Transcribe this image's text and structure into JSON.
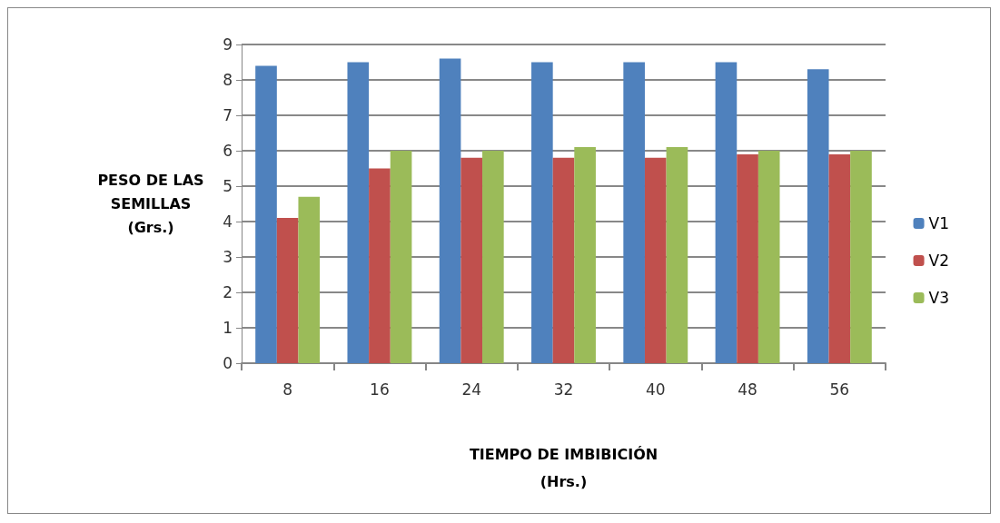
{
  "chart_data": {
    "type": "bar",
    "xlabel": "TIEMPO DE IMBIBICIÓN\n(Hrs.)",
    "ylabel": "PESO DE LAS\nSEMILLAS\n(Grs.)",
    "categories": [
      "8",
      "16",
      "24",
      "32",
      "40",
      "48",
      "56"
    ],
    "series": [
      {
        "name": "V1",
        "color": "#4f81bd",
        "values": [
          8.4,
          8.5,
          8.6,
          8.5,
          8.5,
          8.5,
          8.3
        ]
      },
      {
        "name": "V2",
        "color": "#c0504d",
        "values": [
          4.1,
          5.5,
          5.8,
          5.8,
          5.8,
          5.9,
          5.9
        ]
      },
      {
        "name": "V3",
        "color": "#9bbb59",
        "values": [
          4.7,
          6.0,
          6.0,
          6.1,
          6.1,
          6.0,
          6.0
        ]
      }
    ],
    "ylim": [
      0,
      9
    ],
    "yticks": [
      0,
      1,
      2,
      3,
      4,
      5,
      6,
      7,
      8,
      9
    ],
    "grid": "y",
    "legend": "right"
  }
}
